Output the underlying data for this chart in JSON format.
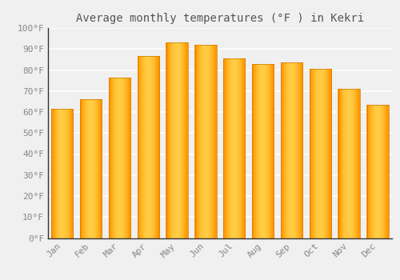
{
  "title": "Average monthly temperatures (°F ) in Kekri",
  "months": [
    "Jan",
    "Feb",
    "Mar",
    "Apr",
    "May",
    "Jun",
    "Jul",
    "Aug",
    "Sep",
    "Oct",
    "Nov",
    "Dec"
  ],
  "values": [
    61.5,
    66.0,
    76.5,
    86.5,
    93.0,
    92.0,
    85.5,
    83.0,
    83.5,
    80.5,
    71.0,
    63.5
  ],
  "bar_color_light": "#FFB830",
  "bar_color_mid": "#FFCC55",
  "bar_color_dark": "#FF9900",
  "ylim": [
    0,
    100
  ],
  "yticks": [
    0,
    10,
    20,
    30,
    40,
    50,
    60,
    70,
    80,
    90,
    100
  ],
  "ytick_labels": [
    "0°F",
    "10°F",
    "20°F",
    "30°F",
    "40°F",
    "50°F",
    "60°F",
    "70°F",
    "80°F",
    "90°F",
    "100°F"
  ],
  "background_color": "#f0f0f0",
  "grid_color": "#ffffff",
  "title_fontsize": 10,
  "tick_fontsize": 8,
  "font_family": "monospace",
  "bar_width": 0.75
}
